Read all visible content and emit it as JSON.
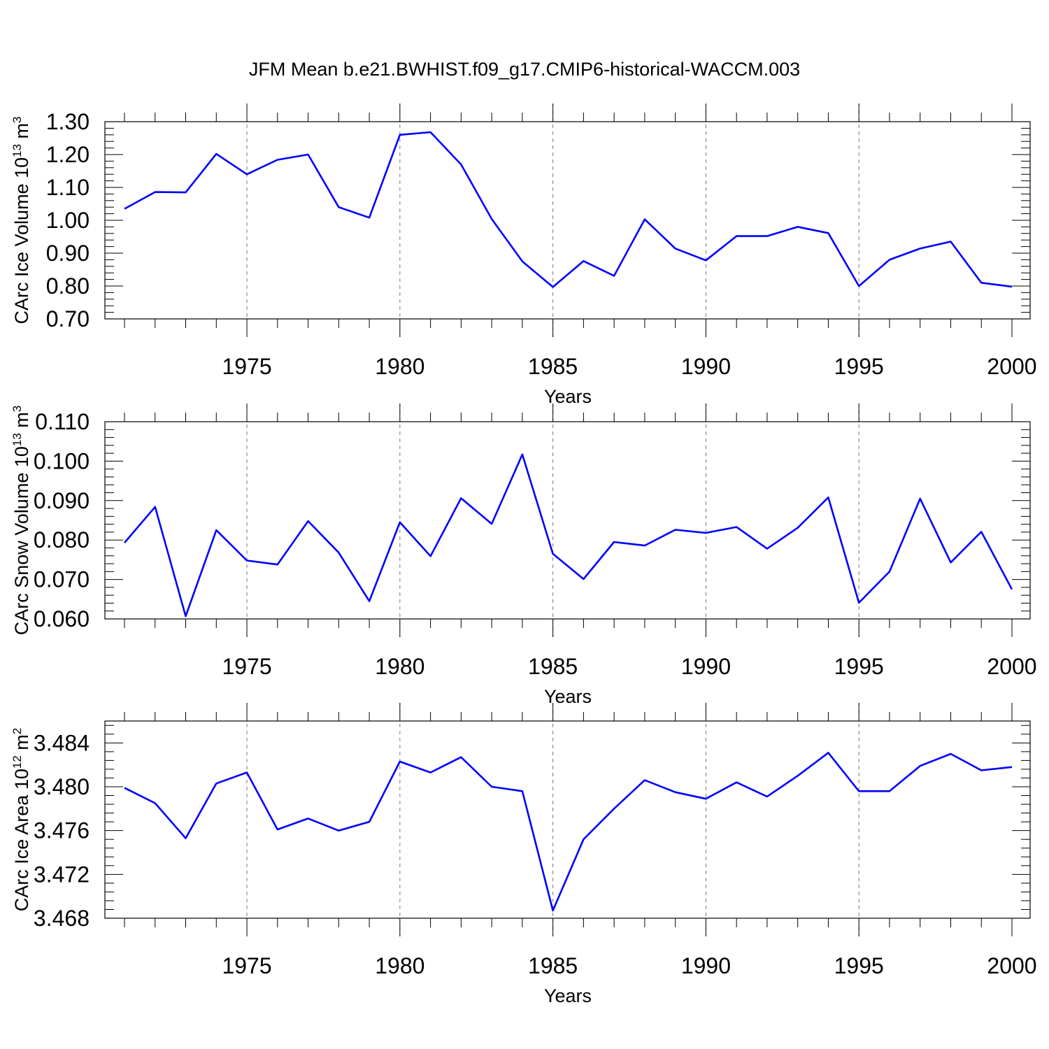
{
  "title": "JFM Mean b.e21.BWHIST.f09_g17.CMIP6-historical-WACCM.003",
  "chart_data": [
    {
      "type": "line",
      "xlabel": "Years",
      "ylabel_main": "CArc Ice Volume 10",
      "ylabel_sup": "13",
      "ylabel_unit": " m",
      "ylabel_unit_sup": "3",
      "xlim": [
        1971,
        2000
      ],
      "ylim": [
        0.7,
        1.3
      ],
      "xticks": [
        1975,
        1980,
        1985,
        1990,
        1995,
        2000
      ],
      "yticks": [
        "0.70",
        "0.80",
        "0.90",
        "1.00",
        "1.10",
        "1.20",
        "1.30"
      ],
      "series": [
        {
          "color": "#0000ff",
          "x": [
            1971,
            1972,
            1973,
            1974,
            1975,
            1976,
            1977,
            1978,
            1979,
            1980,
            1981,
            1982,
            1983,
            1984,
            1985,
            1986,
            1987,
            1988,
            1989,
            1990,
            1991,
            1992,
            1993,
            1994,
            1995,
            1996,
            1997,
            1998,
            1999,
            2000
          ],
          "values": [
            1.035,
            1.086,
            1.085,
            1.202,
            1.14,
            1.184,
            1.2,
            1.04,
            1.008,
            1.26,
            1.268,
            1.17,
            1.004,
            0.875,
            0.797,
            0.876,
            0.831,
            1.003,
            0.914,
            0.878,
            0.952,
            0.952,
            0.98,
            0.961,
            0.8,
            0.88,
            0.914,
            0.935,
            0.81,
            0.798
          ]
        }
      ],
      "grid": "vertical-dashed"
    },
    {
      "type": "line",
      "xlabel": "Years",
      "ylabel_main": "CArc Snow Volume 10",
      "ylabel_sup": "13",
      "ylabel_unit": " m",
      "ylabel_unit_sup": "3",
      "xlim": [
        1971,
        2000
      ],
      "ylim": [
        0.06,
        0.11
      ],
      "xticks": [
        1975,
        1980,
        1985,
        1990,
        1995,
        2000
      ],
      "yticks": [
        "0.060",
        "0.070",
        "0.080",
        "0.090",
        "0.100",
        "0.110"
      ],
      "series": [
        {
          "color": "#0000ff",
          "x": [
            1971,
            1972,
            1973,
            1974,
            1975,
            1976,
            1977,
            1978,
            1979,
            1980,
            1981,
            1982,
            1983,
            1984,
            1985,
            1986,
            1987,
            1988,
            1989,
            1990,
            1991,
            1992,
            1993,
            1994,
            1995,
            1996,
            1997,
            1998,
            1999,
            2000
          ],
          "values": [
            0.0793,
            0.0884,
            0.0607,
            0.0825,
            0.0748,
            0.0738,
            0.0848,
            0.0768,
            0.0645,
            0.0845,
            0.0759,
            0.0906,
            0.0841,
            0.1017,
            0.0765,
            0.0701,
            0.0795,
            0.0786,
            0.0826,
            0.0818,
            0.0833,
            0.0778,
            0.0831,
            0.0908,
            0.0641,
            0.072,
            0.0905,
            0.0743,
            0.0821,
            0.0675
          ]
        }
      ],
      "grid": "vertical-dashed"
    },
    {
      "type": "line",
      "xlabel": "Years",
      "ylabel_main": "CArc Ice Area 10",
      "ylabel_sup": "12",
      "ylabel_unit": " m",
      "ylabel_unit_sup": "2",
      "xlim": [
        1971,
        2000
      ],
      "ylim": [
        3.468,
        3.486
      ],
      "xticks": [
        1975,
        1980,
        1985,
        1990,
        1995,
        2000
      ],
      "yticks": [
        "3.468",
        "3.472",
        "3.476",
        "3.480",
        "3.484"
      ],
      "series": [
        {
          "color": "#0000ff",
          "x": [
            1971,
            1972,
            1973,
            1974,
            1975,
            1976,
            1977,
            1978,
            1979,
            1980,
            1981,
            1982,
            1983,
            1984,
            1985,
            1986,
            1987,
            1988,
            1989,
            1990,
            1991,
            1992,
            1993,
            1994,
            1995,
            1996,
            1997,
            1998,
            1999,
            2000
          ],
          "values": [
            3.4799,
            3.4785,
            3.4753,
            3.4803,
            3.4813,
            3.4761,
            3.4771,
            3.476,
            3.4768,
            3.4823,
            3.4813,
            3.4827,
            3.48,
            3.4796,
            3.4687,
            3.4752,
            3.478,
            3.4806,
            3.4795,
            3.4789,
            3.4804,
            3.4791,
            3.481,
            3.4831,
            3.4796,
            3.4796,
            3.4819,
            3.483,
            3.4815,
            3.4818
          ]
        }
      ],
      "grid": "vertical-dashed"
    }
  ]
}
